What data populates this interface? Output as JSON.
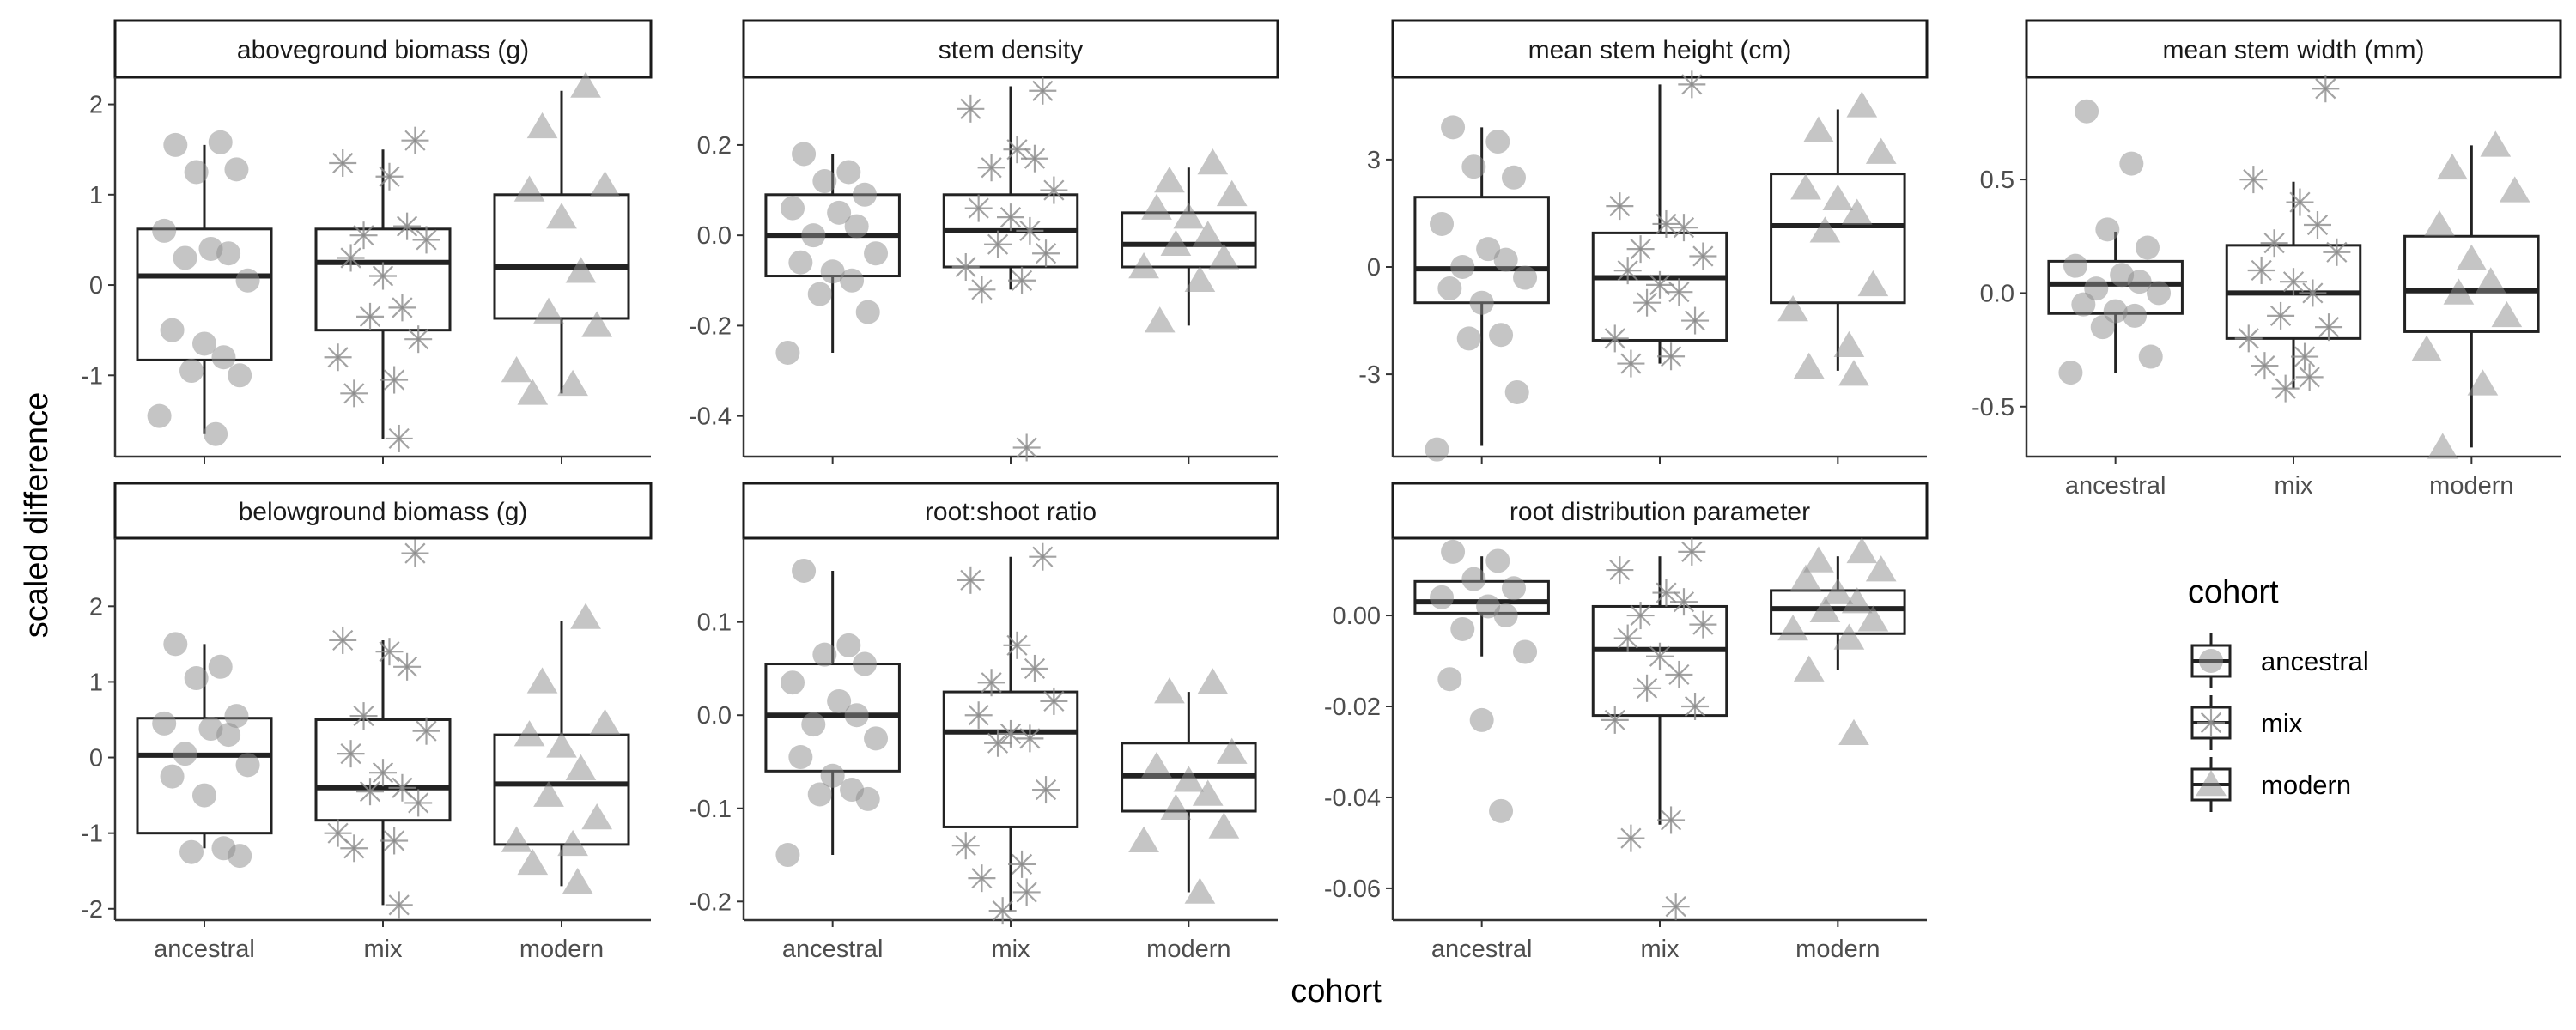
{
  "figure": {
    "xlabel": "cohort",
    "ylabel": "scaled difference",
    "legend": {
      "title": "cohort",
      "position": "right",
      "entries": [
        {
          "label": "ancestral",
          "shape": "circle"
        },
        {
          "label": "mix",
          "shape": "asterisk"
        },
        {
          "label": "modern",
          "shape": "triangle"
        }
      ]
    },
    "colors": {
      "point": "#8c8c8c",
      "box_line": "#222222",
      "strip_fill": "#ffffff",
      "axis": "#333333"
    }
  },
  "chart_data": [
    {
      "type": "box",
      "title": "aboveground biomass (g)",
      "categories": [
        "ancestral",
        "mix",
        "modern"
      ],
      "ylim": [
        -1.9,
        2.3
      ],
      "yticks": [
        -1,
        0,
        1,
        2
      ],
      "yticklabels": [
        "-1",
        "0",
        "1",
        "2"
      ],
      "boxes": [
        {
          "min": -1.65,
          "q1": -0.83,
          "median": 0.1,
          "q3": 0.62,
          "max": 1.55
        },
        {
          "min": -1.7,
          "q1": -0.5,
          "median": 0.25,
          "q3": 0.62,
          "max": 1.5
        },
        {
          "min": -1.2,
          "q1": -0.37,
          "median": 0.2,
          "q3": 1.0,
          "max": 2.15
        }
      ],
      "points": [
        [
          1.55,
          1.58,
          1.25,
          1.28,
          0.6,
          0.4,
          0.35,
          0.3,
          0.05,
          -0.5,
          -0.65,
          -0.8,
          -0.95,
          -1.0,
          -1.45,
          -1.65
        ],
        [
          1.6,
          1.35,
          1.2,
          0.65,
          0.55,
          0.5,
          0.3,
          0.1,
          -0.25,
          -0.35,
          -0.6,
          -0.8,
          -1.05,
          -1.2,
          -1.7
        ],
        [
          2.2,
          1.75,
          1.1,
          1.05,
          0.75,
          0.15,
          -0.3,
          -0.45,
          -0.95,
          -1.1,
          -1.2
        ]
      ]
    },
    {
      "type": "box",
      "title": "stem density",
      "categories": [
        "ancestral",
        "mix",
        "modern"
      ],
      "ylim": [
        -0.49,
        0.35
      ],
      "yticks": [
        -0.4,
        -0.2,
        0.0,
        0.2
      ],
      "yticklabels": [
        "-0.4",
        "-0.2",
        "0.0",
        "0.2"
      ],
      "boxes": [
        {
          "min": -0.26,
          "q1": -0.09,
          "median": 0.0,
          "q3": 0.09,
          "max": 0.18
        },
        {
          "min": -0.12,
          "q1": -0.07,
          "median": 0.01,
          "q3": 0.09,
          "max": 0.33
        },
        {
          "min": -0.2,
          "q1": -0.07,
          "median": -0.02,
          "q3": 0.05,
          "max": 0.15
        }
      ],
      "points": [
        [
          0.18,
          0.14,
          0.12,
          0.09,
          0.06,
          0.05,
          0.02,
          0.0,
          -0.04,
          -0.06,
          -0.08,
          -0.1,
          -0.13,
          -0.17,
          -0.26
        ],
        [
          0.32,
          0.28,
          0.19,
          0.17,
          0.15,
          0.1,
          0.06,
          0.04,
          0.01,
          -0.02,
          -0.04,
          -0.07,
          -0.1,
          -0.12,
          -0.47
        ],
        [
          0.16,
          0.12,
          0.09,
          0.06,
          0.04,
          0.0,
          -0.02,
          -0.05,
          -0.07,
          -0.1,
          -0.19
        ]
      ]
    },
    {
      "type": "box",
      "title": "mean stem height (cm)",
      "categories": [
        "ancestral",
        "mix",
        "modern"
      ],
      "ylim": [
        -5.3,
        5.3
      ],
      "yticks": [
        -3,
        0,
        3
      ],
      "yticklabels": [
        "-3",
        "0",
        "3"
      ],
      "boxes": [
        {
          "min": -5.0,
          "q1": -1.0,
          "median": -0.05,
          "q3": 1.95,
          "max": 3.9
        },
        {
          "min": -2.7,
          "q1": -2.05,
          "median": -0.3,
          "q3": 0.95,
          "max": 5.1
        },
        {
          "min": -2.9,
          "q1": -1.0,
          "median": 1.15,
          "q3": 2.6,
          "max": 4.4
        }
      ],
      "points": [
        [
          3.9,
          3.5,
          2.8,
          2.5,
          1.2,
          0.5,
          0.2,
          0.0,
          -0.3,
          -0.6,
          -1.0,
          -1.9,
          -2.0,
          -3.5,
          -5.1
        ],
        [
          5.1,
          1.7,
          1.2,
          1.1,
          0.5,
          0.3,
          -0.1,
          -0.5,
          -0.7,
          -1.0,
          -1.5,
          -2.0,
          -2.5,
          -2.7
        ],
        [
          4.5,
          3.8,
          3.2,
          2.2,
          1.9,
          1.5,
          1.0,
          -0.5,
          -1.2,
          -2.2,
          -2.8,
          -3.0
        ]
      ]
    },
    {
      "type": "box",
      "title": "mean stem width (mm)",
      "categories": [
        "ancestral",
        "mix",
        "modern"
      ],
      "ylim": [
        -0.72,
        0.95
      ],
      "yticks": [
        -0.5,
        0.0,
        0.5
      ],
      "yticklabels": [
        "-0.5",
        "0.0",
        "0.5"
      ],
      "boxes": [
        {
          "min": -0.35,
          "q1": -0.09,
          "median": 0.04,
          "q3": 0.14,
          "max": 0.27
        },
        {
          "min": -0.42,
          "q1": -0.2,
          "median": 0.0,
          "q3": 0.21,
          "max": 0.49
        },
        {
          "min": -0.68,
          "q1": -0.17,
          "median": 0.01,
          "q3": 0.25,
          "max": 0.65
        }
      ],
      "points": [
        [
          0.8,
          0.57,
          0.28,
          0.2,
          0.12,
          0.08,
          0.05,
          0.02,
          0.0,
          -0.05,
          -0.08,
          -0.1,
          -0.15,
          -0.28,
          -0.35
        ],
        [
          0.9,
          0.5,
          0.4,
          0.3,
          0.22,
          0.18,
          0.1,
          0.05,
          0.0,
          -0.1,
          -0.15,
          -0.2,
          -0.28,
          -0.32,
          -0.37,
          -0.42
        ],
        [
          0.65,
          0.55,
          0.45,
          0.3,
          0.15,
          0.05,
          0.0,
          -0.1,
          -0.25,
          -0.4,
          -0.68
        ]
      ]
    },
    {
      "type": "box",
      "title": "belowground biomass (g)",
      "categories": [
        "ancestral",
        "mix",
        "modern"
      ],
      "ylim": [
        -2.15,
        2.9
      ],
      "yticks": [
        -2,
        -1,
        0,
        1,
        2
      ],
      "yticklabels": [
        "-2",
        "-1",
        "0",
        "1",
        "2"
      ],
      "boxes": [
        {
          "min": -1.2,
          "q1": -1.0,
          "median": 0.03,
          "q3": 0.52,
          "max": 1.5
        },
        {
          "min": -1.95,
          "q1": -0.83,
          "median": -0.4,
          "q3": 0.5,
          "max": 1.55
        },
        {
          "min": -1.7,
          "q1": -1.15,
          "median": -0.35,
          "q3": 0.3,
          "max": 1.8
        }
      ],
      "points": [
        [
          1.5,
          1.2,
          1.05,
          0.55,
          0.45,
          0.38,
          0.3,
          0.05,
          -0.1,
          -0.25,
          -0.5,
          -1.2,
          -1.25,
          -1.3
        ],
        [
          2.7,
          1.55,
          1.4,
          1.2,
          0.55,
          0.35,
          0.05,
          -0.2,
          -0.4,
          -0.45,
          -0.6,
          -1.0,
          -1.1,
          -1.2,
          -1.95
        ],
        [
          1.85,
          1.0,
          0.45,
          0.3,
          0.15,
          -0.15,
          -0.5,
          -0.8,
          -1.1,
          -1.15,
          -1.4,
          -1.65
        ]
      ]
    },
    {
      "type": "box",
      "title": "root:shoot ratio",
      "categories": [
        "ancestral",
        "mix",
        "modern"
      ],
      "ylim": [
        -0.22,
        0.19
      ],
      "yticks": [
        -0.2,
        -0.1,
        0.0,
        0.1
      ],
      "yticklabels": [
        "-0.2",
        "-0.1",
        "0.0",
        "0.1"
      ],
      "boxes": [
        {
          "min": -0.15,
          "q1": -0.06,
          "median": 0.0,
          "q3": 0.055,
          "max": 0.155
        },
        {
          "min": -0.21,
          "q1": -0.12,
          "median": -0.018,
          "q3": 0.025,
          "max": 0.17
        },
        {
          "min": -0.19,
          "q1": -0.103,
          "median": -0.065,
          "q3": -0.03,
          "max": 0.025
        }
      ],
      "points": [
        [
          0.155,
          0.075,
          0.065,
          0.055,
          0.035,
          0.015,
          0.0,
          -0.01,
          -0.025,
          -0.045,
          -0.065,
          -0.08,
          -0.085,
          -0.09,
          -0.15
        ],
        [
          0.17,
          0.145,
          0.075,
          0.05,
          0.035,
          0.015,
          0.0,
          -0.02,
          -0.025,
          -0.03,
          -0.08,
          -0.14,
          -0.16,
          -0.175,
          -0.19,
          -0.21
        ],
        [
          0.035,
          0.025,
          -0.04,
          -0.055,
          -0.07,
          -0.085,
          -0.1,
          -0.12,
          -0.135,
          -0.19
        ]
      ]
    },
    {
      "type": "box",
      "title": "root distribution parameter",
      "categories": [
        "ancestral",
        "mix",
        "modern"
      ],
      "ylim": [
        -0.067,
        0.017
      ],
      "yticks": [
        -0.06,
        -0.04,
        -0.02,
        0.0
      ],
      "yticklabels": [
        "-0.06",
        "-0.04",
        "-0.02",
        "0.00"
      ],
      "boxes": [
        {
          "min": -0.009,
          "q1": 0.0005,
          "median": 0.003,
          "q3": 0.0075,
          "max": 0.013
        },
        {
          "min": -0.046,
          "q1": -0.022,
          "median": -0.0075,
          "q3": 0.002,
          "max": 0.013
        },
        {
          "min": -0.012,
          "q1": -0.004,
          "median": 0.0015,
          "q3": 0.0055,
          "max": 0.013
        }
      ],
      "points": [
        [
          0.014,
          0.012,
          0.008,
          0.006,
          0.004,
          0.002,
          0.0,
          -0.003,
          -0.008,
          -0.014,
          -0.023,
          -0.043
        ],
        [
          0.014,
          0.01,
          0.005,
          0.003,
          0.0,
          -0.002,
          -0.005,
          -0.009,
          -0.013,
          -0.016,
          -0.02,
          -0.023,
          -0.045,
          -0.049,
          -0.064
        ],
        [
          0.014,
          0.012,
          0.01,
          0.008,
          0.005,
          0.003,
          0.001,
          -0.001,
          -0.003,
          -0.005,
          -0.012,
          -0.026
        ]
      ]
    }
  ]
}
